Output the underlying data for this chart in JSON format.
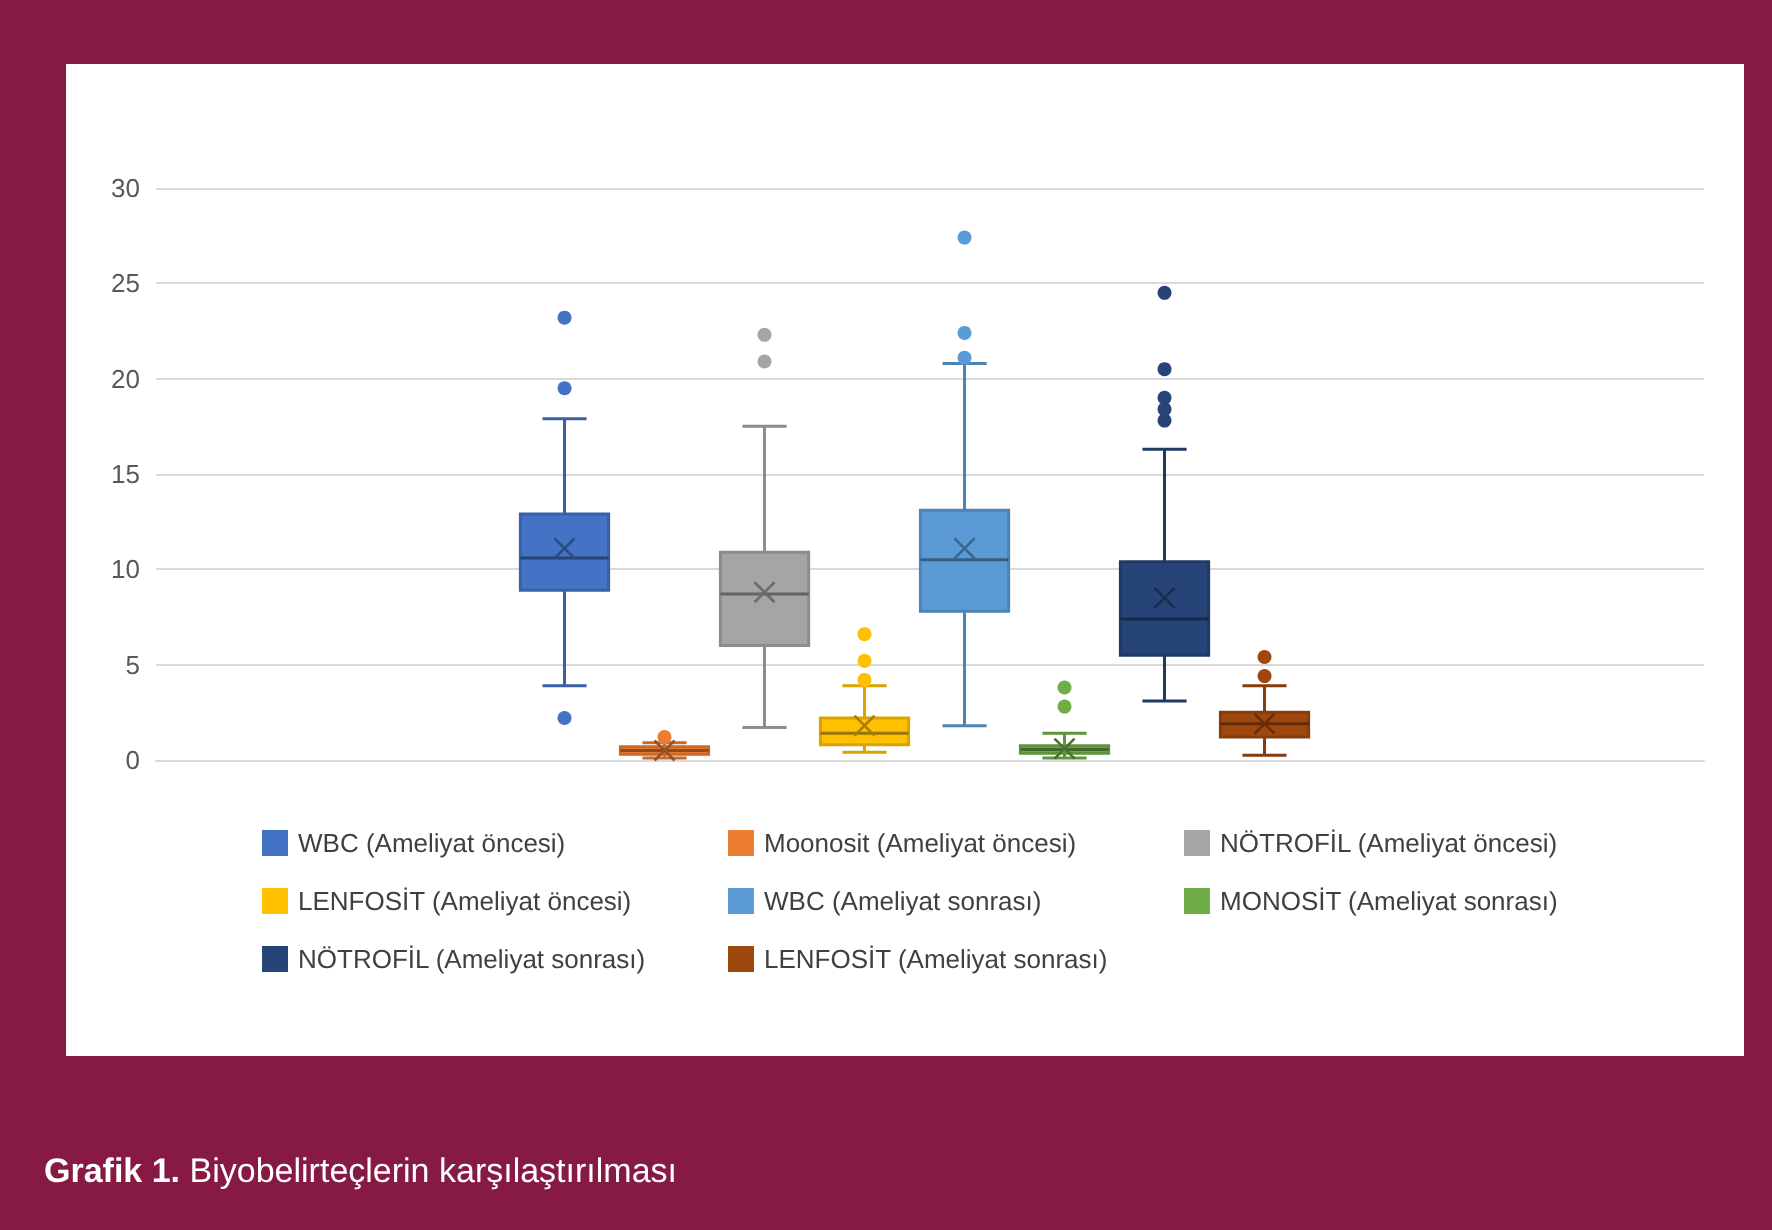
{
  "chart_data": {
    "type": "box",
    "title": "Grafik 1. Biyobelirteçlerin karşılaştırılması",
    "categories": [
      null
    ],
    "ylim": [
      0,
      30
    ],
    "yticks": [
      0,
      5,
      10,
      15,
      20,
      25,
      30
    ],
    "grid": "y",
    "legend": "bottom",
    "series": [
      {
        "name": "WBC (Ameliyat öncesi)",
        "color": "#4472c4",
        "boxes": [
          {
            "low": 3.9,
            "q1": 8.9,
            "median": 10.6,
            "q3": 12.9,
            "high": 17.9,
            "mean": 11.1,
            "outliers": [
              23.2,
              19.5,
              2.2
            ]
          }
        ]
      },
      {
        "name": "Moonosit (Ameliyat öncesi)",
        "color": "#ed7d31",
        "boxes": [
          {
            "low": 0.1,
            "q1": 0.3,
            "median": 0.5,
            "q3": 0.7,
            "high": 0.9,
            "mean": 0.5,
            "outliers": [
              1.2
            ]
          }
        ]
      },
      {
        "name": "NÖTROFİL (Ameliyat öncesi)",
        "color": "#a5a5a5",
        "boxes": [
          {
            "low": 1.7,
            "q1": 6.0,
            "median": 8.7,
            "q3": 10.9,
            "high": 17.5,
            "mean": 8.8,
            "outliers": [
              22.3,
              20.9
            ]
          }
        ]
      },
      {
        "name": "LENFOSİT (Ameliyat öncesi)",
        "color": "#ffc000",
        "boxes": [
          {
            "low": 0.4,
            "q1": 0.8,
            "median": 1.4,
            "q3": 2.2,
            "high": 3.9,
            "mean": 1.8,
            "outliers": [
              6.6,
              5.2,
              4.2
            ]
          }
        ]
      },
      {
        "name": "WBC (Ameliyat sonrası)",
        "color": "#5b9bd5",
        "boxes": [
          {
            "low": 1.8,
            "q1": 7.8,
            "median": 10.5,
            "q3": 13.1,
            "high": 20.8,
            "mean": 11.1,
            "outliers": [
              27.4,
              22.4,
              21.1
            ]
          }
        ]
      },
      {
        "name": "MONOSİT (Ameliyat sonrası)",
        "color": "#70ad47",
        "boxes": [
          {
            "low": 0.1,
            "q1": 0.35,
            "median": 0.55,
            "q3": 0.75,
            "high": 1.4,
            "mean": 0.6,
            "outliers": [
              3.8,
              2.8
            ]
          }
        ]
      },
      {
        "name": "NÖTROFİL (Ameliyat sonrası)",
        "color": "#264478",
        "boxes": [
          {
            "low": 3.1,
            "q1": 5.5,
            "median": 7.4,
            "q3": 10.4,
            "high": 16.3,
            "mean": 8.5,
            "outliers": [
              24.5,
              20.5,
              19.0,
              18.4,
              17.8
            ]
          }
        ]
      },
      {
        "name": "LENFOSİT (Ameliyat sonrası)",
        "color": "#9e480e",
        "boxes": [
          {
            "low": 0.25,
            "q1": 1.2,
            "median": 1.9,
            "q3": 2.5,
            "high": 3.9,
            "mean": 1.9,
            "outliers": [
              5.4,
              4.4
            ]
          }
        ]
      }
    ]
  }
}
